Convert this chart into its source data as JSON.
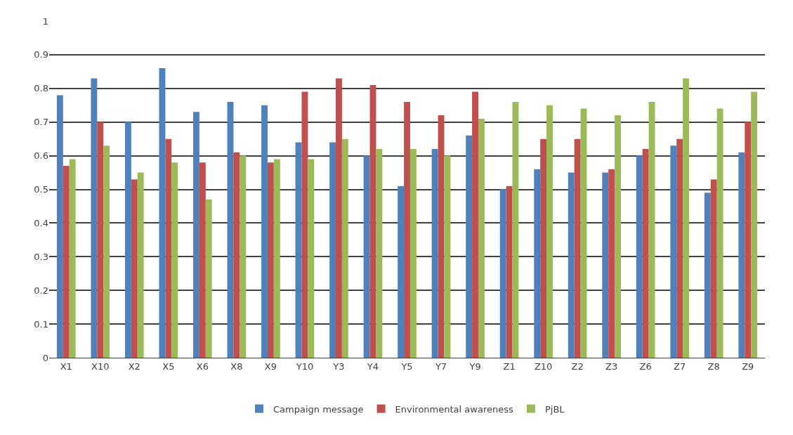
{
  "chart_data": {
    "type": "bar",
    "categories": [
      "X1",
      "X10",
      "X2",
      "X5",
      "X6",
      "X8",
      "X9",
      "Y10",
      "Y3",
      "Y4",
      "Y5",
      "Y7",
      "Y9",
      "Z1",
      "Z10",
      "Z2",
      "Z3",
      "Z6",
      "Z7",
      "Z8",
      "Z9"
    ],
    "series": [
      {
        "name": "Campaign message",
        "color": "#4f81bd",
        "values": [
          0.78,
          0.83,
          0.7,
          0.86,
          0.73,
          0.76,
          0.75,
          0.64,
          0.64,
          0.6,
          0.51,
          0.62,
          0.66,
          0.5,
          0.56,
          0.55,
          0.55,
          0.6,
          0.63,
          0.49,
          0.61
        ]
      },
      {
        "name": "Environmental awareness",
        "color": "#c0504d",
        "values": [
          0.57,
          0.7,
          0.53,
          0.65,
          0.58,
          0.61,
          0.58,
          0.79,
          0.83,
          0.81,
          0.76,
          0.72,
          0.79,
          0.51,
          0.65,
          0.65,
          0.56,
          0.62,
          0.65,
          0.53,
          0.7
        ]
      },
      {
        "name": "PjBL",
        "color": "#9bbb59",
        "values": [
          0.59,
          0.63,
          0.55,
          0.58,
          0.47,
          0.6,
          0.59,
          0.59,
          0.65,
          0.62,
          0.62,
          0.6,
          0.71,
          0.76,
          0.75,
          0.74,
          0.72,
          0.76,
          0.83,
          0.74,
          0.79
        ]
      }
    ],
    "ylim": [
      0,
      1
    ],
    "yticks": [
      0,
      0.1,
      0.2,
      0.3,
      0.4,
      0.5,
      0.6,
      0.7,
      0.8,
      0.9,
      1
    ],
    "grid": "y",
    "legend": "bottom"
  }
}
